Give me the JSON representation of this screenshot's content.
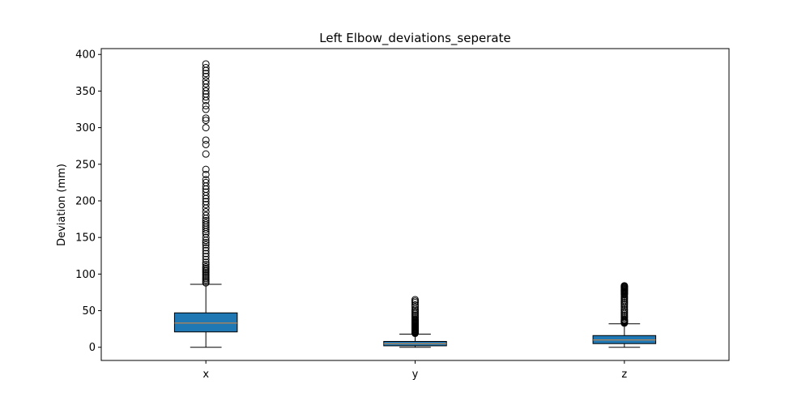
{
  "chart_data": {
    "type": "box",
    "title": "Left Elbow_deviations_seperate",
    "xlabel": "",
    "ylabel": "Deviation (mm)",
    "ylim": [
      -18,
      408
    ],
    "yticks": [
      0,
      50,
      100,
      150,
      200,
      250,
      300,
      350,
      400
    ],
    "grid": false,
    "legend": "none",
    "box_color": "#1f77b4",
    "median_color": "#e08a3c",
    "categories": [
      "x",
      "y",
      "z"
    ],
    "boxes": [
      {
        "label": "x",
        "whisker_low": 0,
        "q1": 21,
        "median": 33,
        "q3": 47,
        "whisker_high": 86,
        "outliers": [
          88,
          90,
          92,
          94,
          96,
          98,
          100,
          102,
          104,
          106,
          108,
          110,
          113,
          116,
          120,
          124,
          128,
          132,
          136,
          140,
          143,
          146,
          150,
          155,
          158,
          161,
          164,
          167,
          170,
          173,
          176,
          180,
          185,
          190,
          195,
          199,
          203,
          207,
          212,
          216,
          220,
          225,
          229,
          236,
          243,
          264,
          277,
          283,
          300,
          310,
          313,
          325,
          330,
          337,
          342,
          346,
          350,
          355,
          360,
          364,
          370,
          374,
          378,
          382,
          387
        ]
      },
      {
        "label": "y",
        "whisker_low": 0,
        "q1": 2,
        "median": 5,
        "q3": 8,
        "whisker_high": 18,
        "outliers": [
          19,
          20,
          21,
          22,
          23,
          24,
          25,
          26,
          27,
          28,
          29,
          30,
          31,
          32,
          33,
          34,
          35,
          36,
          37,
          38,
          40,
          42,
          44,
          46,
          48,
          50,
          52,
          55,
          58,
          61,
          63,
          65
        ]
      },
      {
        "label": "z",
        "whisker_low": 0,
        "q1": 5,
        "median": 10,
        "q3": 16,
        "whisker_high": 32,
        "outliers": [
          33,
          34,
          35,
          36,
          37,
          38,
          40,
          42,
          44,
          46,
          48,
          50,
          52,
          55,
          58,
          60,
          62,
          64,
          66,
          68,
          70,
          72,
          73,
          74,
          75,
          76,
          77,
          78,
          79,
          80,
          81,
          82,
          83,
          84
        ]
      }
    ]
  }
}
